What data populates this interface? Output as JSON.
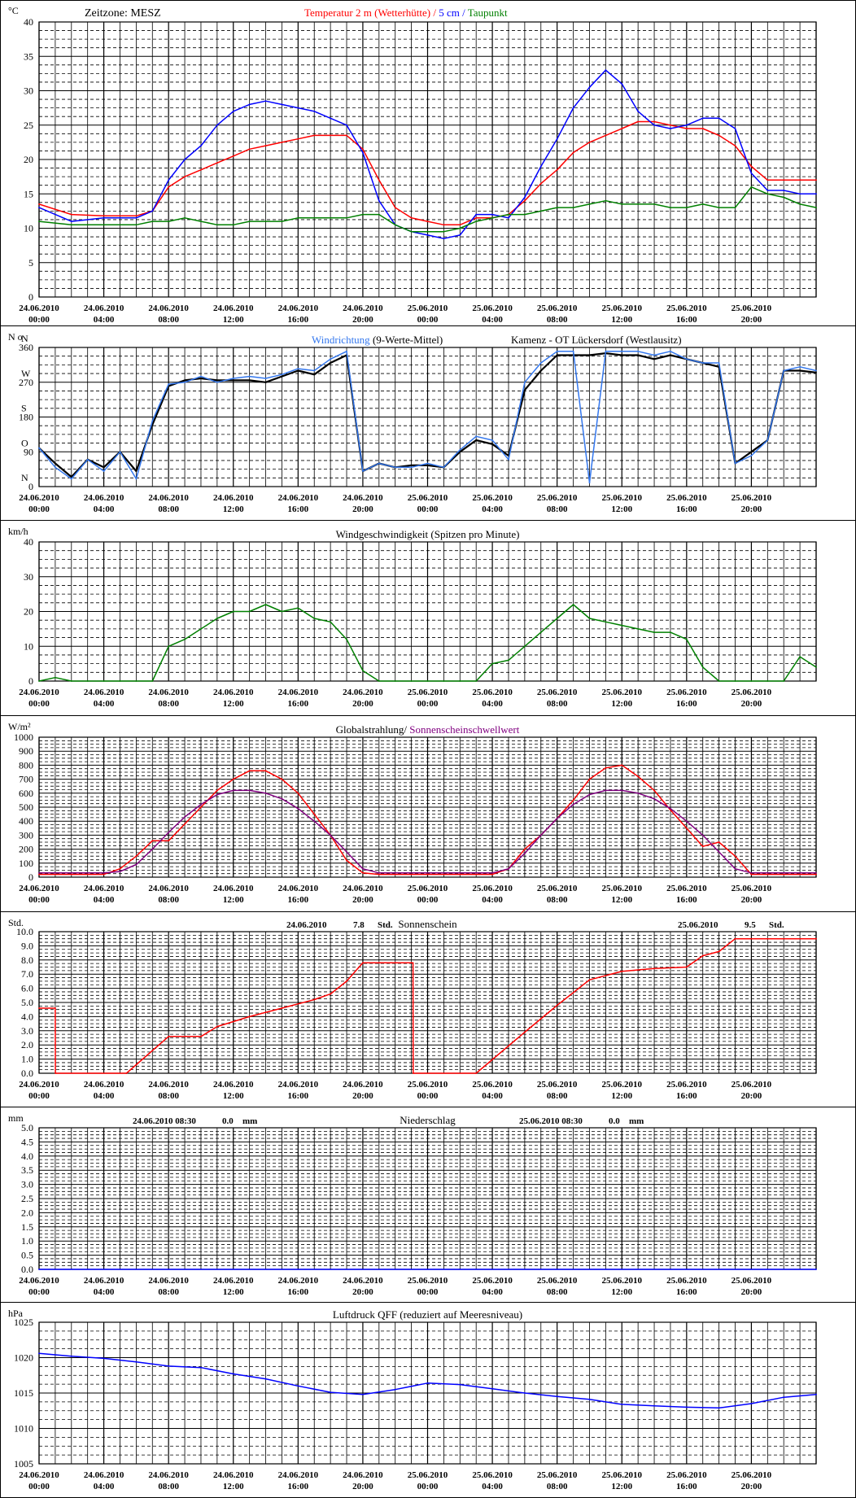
{
  "x_axis": {
    "ticks": [
      [
        "24.06.2010",
        "00:00"
      ],
      [
        "24.06.2010",
        "04:00"
      ],
      [
        "24.06.2010",
        "08:00"
      ],
      [
        "24.06.2010",
        "12:00"
      ],
      [
        "24.06.2010",
        "16:00"
      ],
      [
        "24.06.2010",
        "20:00"
      ],
      [
        "25.06.2010",
        "00:00"
      ],
      [
        "25.06.2010",
        "04:00"
      ],
      [
        "25.06.2010",
        "08:00"
      ],
      [
        "25.06.2010",
        "12:00"
      ],
      [
        "25.06.2010",
        "16:00"
      ],
      [
        "25.06.2010",
        "20:00"
      ]
    ],
    "x_range_hours": [
      0,
      48
    ]
  },
  "colors": {
    "temp_2m": "#ff0000",
    "temp_5cm": "#0000ff",
    "dewpoint": "#008000",
    "wind_dir": "#3377ee",
    "wind_dir_avg": "#000000",
    "wind_speed": "#008000",
    "radiation": "#ff0000",
    "sun_threshold": "#800080",
    "sunshine": "#ff0000",
    "pressure": "#0000ff"
  },
  "chart_data": [
    {
      "id": "temperature",
      "type": "line",
      "unit": "°C",
      "title_parts": [
        {
          "text": "Zeitzone: MESZ",
          "color": "#000000"
        },
        {
          "text": "Temperatur 2 m (Wetterhütte)",
          "color": "#ff0000"
        },
        {
          "text": "/",
          "color": "#ff0000"
        },
        {
          "text": "5 cm",
          "color": "#0000ff"
        },
        {
          "text": "/",
          "color": "#0000ff"
        },
        {
          "text": "Taupunkt",
          "color": "#008000"
        }
      ],
      "ylim": [
        0,
        40
      ],
      "yticks": [
        "0",
        "5",
        "10",
        "15",
        "20",
        "25",
        "30",
        "35",
        "40"
      ],
      "x": [
        0,
        2,
        4,
        6,
        7,
        8,
        9,
        10,
        11,
        12,
        13,
        14,
        15,
        16,
        17,
        18,
        19,
        20,
        21,
        22,
        23,
        24,
        25,
        26,
        27,
        28,
        29,
        30,
        31,
        32,
        33,
        34,
        35,
        36,
        37,
        38,
        39,
        40,
        41,
        42,
        43,
        44,
        45,
        46,
        47,
        48
      ],
      "series": [
        {
          "key": "temp_2m",
          "values": [
            13.5,
            12,
            11.8,
            11.8,
            12.5,
            16,
            17.5,
            18.5,
            19.5,
            20.5,
            21.5,
            22,
            22.5,
            23,
            23.5,
            23.5,
            23.5,
            21.5,
            17,
            13,
            11.5,
            11,
            10.5,
            10.5,
            11.5,
            11.5,
            12,
            14,
            16.5,
            18.5,
            21,
            22.5,
            23.5,
            24.5,
            25.5,
            25.5,
            25,
            24.5,
            24.5,
            23.5,
            22,
            19,
            17,
            17,
            17,
            17
          ]
        },
        {
          "key": "temp_5cm",
          "values": [
            13,
            11,
            11.5,
            11.5,
            12.5,
            17,
            20,
            22,
            25,
            27,
            28,
            28.5,
            28,
            27.5,
            27,
            26,
            25,
            21,
            14,
            10.5,
            9.5,
            9,
            8.5,
            9,
            12,
            12,
            11.5,
            14.5,
            19,
            23,
            27.5,
            30.5,
            33,
            31,
            27,
            25,
            24.5,
            25,
            26,
            26,
            24.5,
            18,
            15.5,
            15.5,
            15,
            15
          ]
        },
        {
          "key": "dewpoint",
          "values": [
            11,
            10.5,
            10.5,
            10.5,
            11,
            11,
            11.5,
            11,
            10.5,
            10.5,
            11,
            11,
            11,
            11.5,
            11.5,
            11.5,
            11.5,
            12,
            12,
            10.5,
            9.5,
            9.5,
            9.5,
            10,
            11,
            11.5,
            12,
            12,
            12.5,
            13,
            13,
            13.5,
            14,
            13.5,
            13.5,
            13.5,
            13,
            13,
            13.5,
            13,
            13,
            16,
            15,
            14.5,
            13.5,
            13
          ]
        }
      ]
    },
    {
      "id": "wind_direction",
      "type": "line",
      "unit": "N o",
      "title_parts": [
        {
          "text": "Windrichtung",
          "color": "#3377ee"
        },
        {
          "text": "(9-Werte-Mittel)",
          "color": "#000000"
        },
        {
          "text": "Kamenz - OT Lückersdorf (Westlausitz)",
          "color": "#000000"
        }
      ],
      "ylim": [
        0,
        360
      ],
      "yticks": [
        "0",
        "90",
        "180",
        "270",
        "360"
      ],
      "cardinal": [
        "N",
        "O",
        "S",
        "W",
        "N"
      ],
      "x": [
        0,
        1,
        2,
        3,
        4,
        5,
        6,
        7,
        8,
        9,
        10,
        11,
        12,
        13,
        14,
        15,
        16,
        17,
        18,
        19,
        20,
        21,
        22,
        23,
        24,
        25,
        26,
        27,
        28,
        29,
        30,
        31,
        32,
        33,
        34,
        35,
        36,
        37,
        38,
        39,
        40,
        41,
        42,
        43,
        44,
        45,
        46,
        47,
        48
      ],
      "series": [
        {
          "key": "wind_dir_avg",
          "values": [
            100,
            60,
            25,
            70,
            50,
            90,
            40,
            160,
            260,
            275,
            280,
            275,
            275,
            275,
            270,
            285,
            300,
            290,
            320,
            340,
            40,
            60,
            50,
            55,
            55,
            50,
            90,
            120,
            110,
            80,
            250,
            300,
            340,
            340,
            340,
            345,
            340,
            340,
            330,
            340,
            330,
            320,
            310,
            60,
            90,
            120,
            300,
            300,
            295
          ]
        },
        {
          "key": "wind_dir",
          "values": [
            100,
            50,
            20,
            70,
            40,
            90,
            20,
            170,
            265,
            270,
            285,
            270,
            280,
            285,
            280,
            290,
            305,
            300,
            330,
            350,
            40,
            60,
            50,
            50,
            60,
            50,
            95,
            130,
            120,
            70,
            270,
            320,
            350,
            350,
            10,
            350,
            350,
            350,
            340,
            350,
            330,
            320,
            320,
            60,
            80,
            120,
            300,
            310,
            300
          ]
        }
      ]
    },
    {
      "id": "wind_speed",
      "type": "line",
      "unit": "km/h",
      "title_parts": [
        {
          "text": "Windgeschwindigkeit (Spitzen pro Minute)",
          "color": "#000000"
        }
      ],
      "ylim": [
        0,
        40
      ],
      "yticks": [
        "0",
        "10",
        "20",
        "30",
        "40"
      ],
      "x": [
        0,
        1,
        2,
        3,
        4,
        5,
        6,
        7,
        8,
        9,
        10,
        11,
        12,
        13,
        14,
        15,
        16,
        17,
        18,
        19,
        20,
        21,
        22,
        23,
        24,
        25,
        26,
        27,
        28,
        29,
        30,
        31,
        32,
        33,
        34,
        35,
        36,
        37,
        38,
        39,
        40,
        41,
        42,
        43,
        44,
        45,
        46,
        47,
        48
      ],
      "series": [
        {
          "key": "wind_speed",
          "values": [
            0,
            1,
            0,
            0,
            0,
            0,
            0,
            0,
            10,
            12,
            15,
            18,
            20,
            20,
            22,
            20,
            21,
            18,
            17,
            12,
            3,
            0,
            0,
            0,
            0,
            0,
            0,
            0,
            5,
            6,
            10,
            14,
            18,
            22,
            18,
            17,
            16,
            15,
            14,
            14,
            12,
            4,
            0,
            0,
            0,
            0,
            0,
            7,
            4
          ]
        }
      ]
    },
    {
      "id": "radiation",
      "type": "line",
      "unit": "W/m²",
      "title_parts": [
        {
          "text": "Globalstrahlung/",
          "color": "#000000"
        },
        {
          "text": "Sonnenscheinschwellwert",
          "color": "#800080"
        }
      ],
      "ylim": [
        0,
        1000
      ],
      "yticks": [
        "0",
        "100",
        "200",
        "300",
        "400",
        "500",
        "600",
        "700",
        "800",
        "900",
        "1000"
      ],
      "x": [
        0,
        2,
        4,
        5,
        6,
        7,
        8,
        9,
        10,
        11,
        12,
        13,
        14,
        15,
        16,
        17,
        18,
        19,
        20,
        21,
        22,
        24,
        26,
        28,
        29,
        30,
        31,
        32,
        33,
        34,
        35,
        36,
        37,
        38,
        39,
        40,
        41,
        42,
        43,
        44,
        45,
        46,
        48
      ],
      "series": [
        {
          "key": "radiation",
          "values": [
            20,
            20,
            20,
            60,
            150,
            260,
            260,
            380,
            500,
            620,
            700,
            760,
            760,
            700,
            600,
            450,
            300,
            120,
            30,
            20,
            20,
            20,
            20,
            20,
            60,
            200,
            300,
            420,
            550,
            700,
            780,
            800,
            720,
            620,
            480,
            350,
            220,
            250,
            150,
            20,
            20,
            20,
            20
          ]
        },
        {
          "key": "sun_threshold",
          "values": [
            30,
            30,
            30,
            40,
            90,
            200,
            320,
            430,
            520,
            590,
            620,
            620,
            600,
            560,
            490,
            400,
            300,
            180,
            60,
            30,
            30,
            30,
            30,
            30,
            60,
            170,
            300,
            420,
            520,
            590,
            620,
            620,
            600,
            560,
            490,
            400,
            300,
            180,
            60,
            30,
            30,
            30,
            30
          ]
        }
      ]
    },
    {
      "id": "sunshine",
      "type": "line",
      "unit": "Std.",
      "title_parts": [
        {
          "text": "Sonnenschein",
          "color": "#000000"
        }
      ],
      "day_totals": [
        {
          "date": "24.06.2010",
          "value": "7.8",
          "unit": "Std."
        },
        {
          "date": "25.06.2010",
          "value": "9.5",
          "unit": "Std."
        }
      ],
      "ylim": [
        0,
        10
      ],
      "yticks": [
        "0.0",
        "1.0",
        "2.0",
        "3.0",
        "4.0",
        "5.0",
        "6.0",
        "7.0",
        "8.0",
        "9.0",
        "10.0"
      ],
      "x": [
        0,
        1,
        1.01,
        5.4,
        8,
        10,
        11,
        13,
        15,
        17,
        18,
        19,
        20,
        21,
        22,
        23.1,
        23.11,
        27,
        30,
        32,
        34,
        36,
        38,
        40,
        41,
        42,
        43,
        48
      ],
      "series": [
        {
          "key": "sunshine",
          "values": [
            4.6,
            4.6,
            0,
            0,
            2.6,
            2.6,
            3.3,
            4.0,
            4.6,
            5.2,
            5.6,
            6.5,
            7.8,
            7.8,
            7.8,
            7.8,
            0,
            0,
            2.9,
            4.8,
            6.6,
            7.2,
            7.4,
            7.5,
            8.3,
            8.6,
            9.5,
            9.5
          ]
        }
      ]
    },
    {
      "id": "precipitation",
      "type": "line",
      "unit": "mm",
      "title_parts": [
        {
          "text": "Niederschlag",
          "color": "#000000"
        }
      ],
      "day_totals": [
        {
          "date": "24.06.2010 08:30",
          "value": "0.0",
          "unit": "mm"
        },
        {
          "date": "25.06.2010 08:30",
          "value": "0.0",
          "unit": "mm"
        }
      ],
      "ylim": [
        0,
        5
      ],
      "yticks": [
        "0.0",
        "0.5",
        "1.0",
        "1.5",
        "2.0",
        "2.5",
        "3.0",
        "3.5",
        "4.0",
        "4.5",
        "5.0"
      ],
      "x": [
        0,
        48
      ],
      "series": [
        {
          "key": "pressure",
          "values": [
            0,
            0
          ]
        }
      ]
    },
    {
      "id": "pressure",
      "type": "line",
      "unit": "hPa",
      "title_parts": [
        {
          "text": "Luftdruck QFF (reduziert auf Meeresniveau)",
          "color": "#000000"
        }
      ],
      "ylim": [
        1005,
        1025
      ],
      "yticks": [
        "1005",
        "1010",
        "1015",
        "1020",
        "1025"
      ],
      "x": [
        0,
        2,
        4,
        6,
        8,
        10,
        12,
        14,
        16,
        18,
        20,
        22,
        24,
        26,
        28,
        30,
        32,
        34,
        36,
        38,
        40,
        42,
        44,
        46,
        48
      ],
      "series": [
        {
          "key": "pressure",
          "values": [
            1020.6,
            1020.2,
            1019.9,
            1019.4,
            1018.8,
            1018.6,
            1017.7,
            1017,
            1016,
            1015.1,
            1014.8,
            1015.5,
            1016.4,
            1016.2,
            1015.6,
            1015,
            1014.5,
            1014.1,
            1013.4,
            1013.2,
            1013,
            1012.9,
            1013.5,
            1014.4,
            1014.8
          ]
        }
      ]
    }
  ]
}
